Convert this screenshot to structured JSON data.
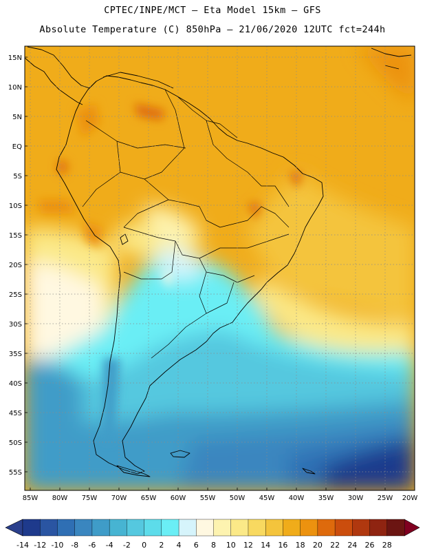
{
  "header": {
    "line1": "CPTEC/INPE/MCT –  Eta Model 15km – GFS",
    "line2": "Absolute Temperature (C) 850hPa – 21/06/2020 12UTC fct=244h"
  },
  "map": {
    "lat_labels": [
      "15N",
      "10N",
      "5N",
      "EQ",
      "5S",
      "10S",
      "15S",
      "20S",
      "25S",
      "30S",
      "35S",
      "40S",
      "45S",
      "50S",
      "55S"
    ],
    "lon_labels": [
      "85W",
      "80W",
      "75W",
      "70W",
      "65W",
      "60W",
      "55W",
      "50W",
      "45W",
      "40W",
      "35W",
      "30W",
      "25W",
      "20W"
    ],
    "field": "Absolute Temperature 850hPa",
    "units": "C"
  },
  "colorbar": {
    "labels": [
      "-14",
      "-12",
      "-10",
      "-8",
      "-6",
      "-4",
      "-2",
      "0",
      "2",
      "4",
      "6",
      "8",
      "10",
      "12",
      "14",
      "16",
      "18",
      "20",
      "22",
      "24",
      "26",
      "28"
    ],
    "colors": [
      "#1e3a8c",
      "#2a55a2",
      "#2f6fb4",
      "#3a86bf",
      "#3f9cc8",
      "#47b4d2",
      "#55c8df",
      "#5ddcea",
      "#6aeef5",
      "#d6f4fb",
      "#fff8e1",
      "#fdf3b0",
      "#fbe988",
      "#f8d960",
      "#f4c43c",
      "#f0ac1a",
      "#ec920f",
      "#de6a0c",
      "#cb4d0d",
      "#b0380f",
      "#8f2411",
      "#6b1512"
    ],
    "min_arrow_color": "#2a3f8c",
    "max_arrow_color": "#800020"
  }
}
